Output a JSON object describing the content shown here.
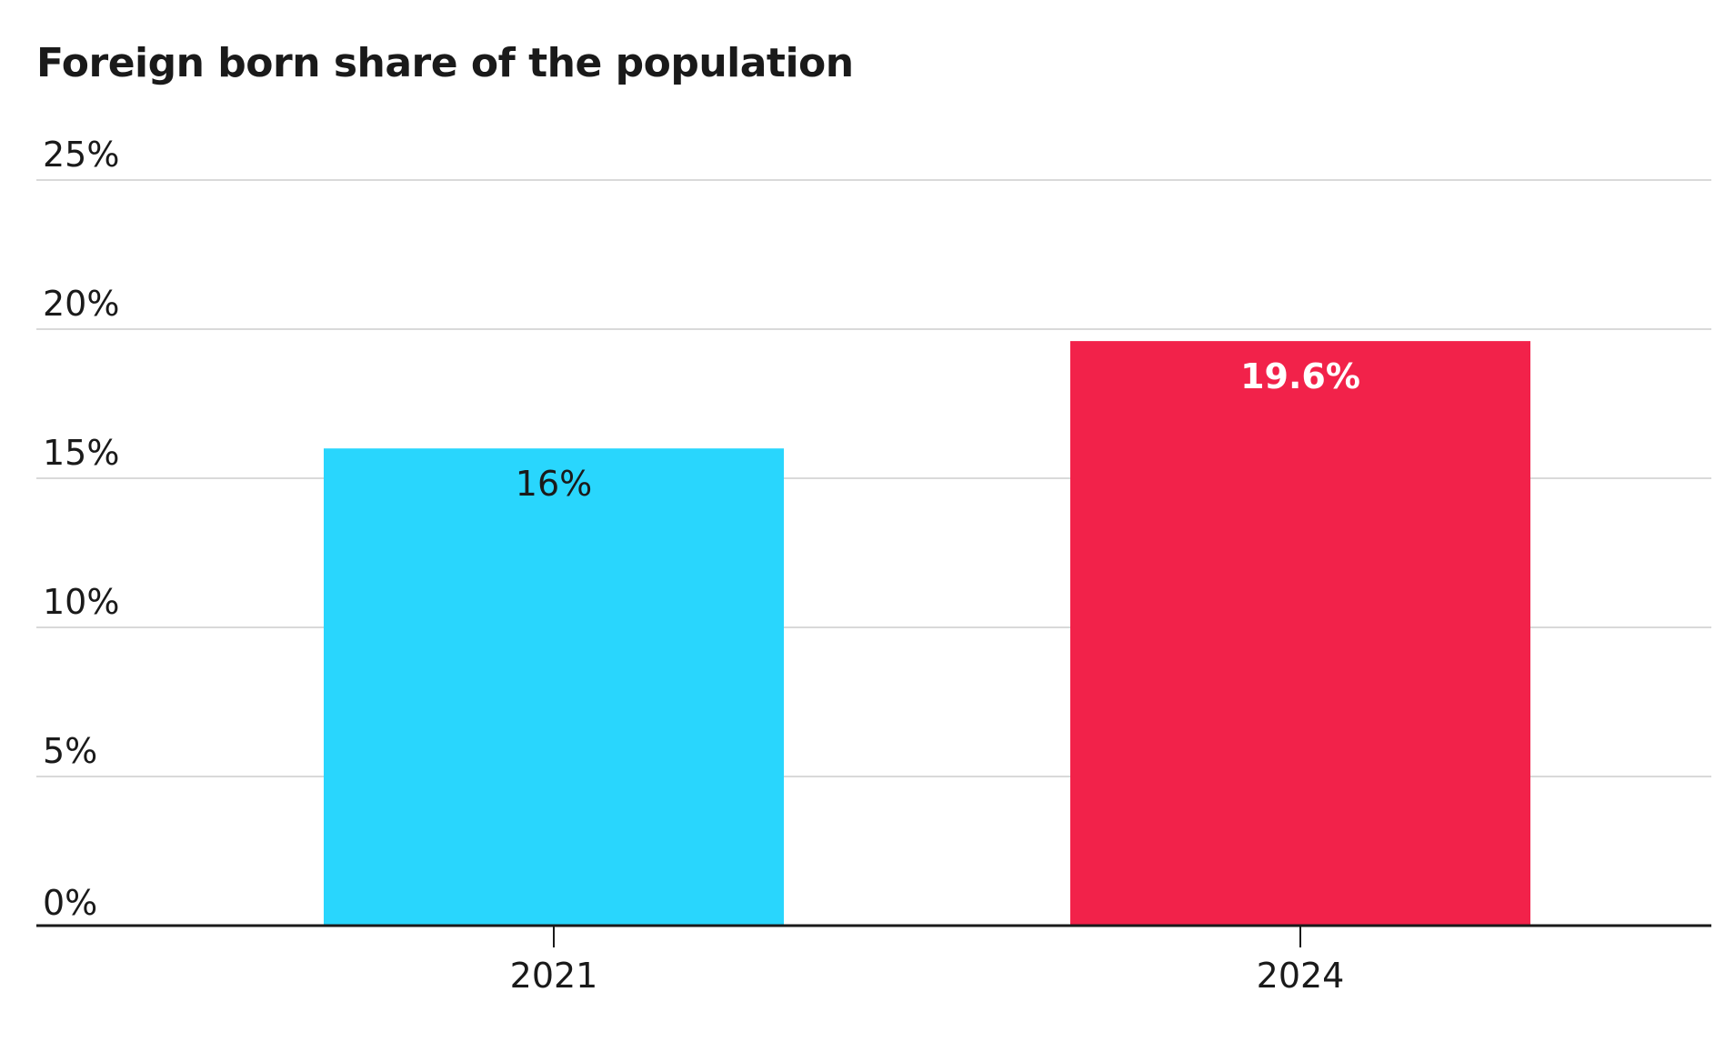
{
  "chart_data": {
    "type": "bar",
    "title": "Foreign born share of the population",
    "categories": [
      "2021",
      "2024"
    ],
    "values": [
      16,
      19.6
    ],
    "data_labels": [
      "16%",
      "19.6%"
    ],
    "bar_colors": [
      "#29d6fd",
      "#f2224a"
    ],
    "data_label_colors": [
      "#1a1a1a",
      "#ffffff"
    ],
    "data_label_bold": [
      false,
      true
    ],
    "xlabel": "",
    "ylabel": "",
    "ylim": [
      0,
      25
    ],
    "y_ticks": [
      0,
      5,
      10,
      15,
      20,
      25
    ],
    "y_tick_labels": [
      "0%",
      "5%",
      "10%",
      "15%",
      "20%",
      "25%"
    ],
    "grid": true,
    "legend": "none",
    "gridline_color": "#d9d9d9",
    "axis_color": "#1a1a1a"
  }
}
